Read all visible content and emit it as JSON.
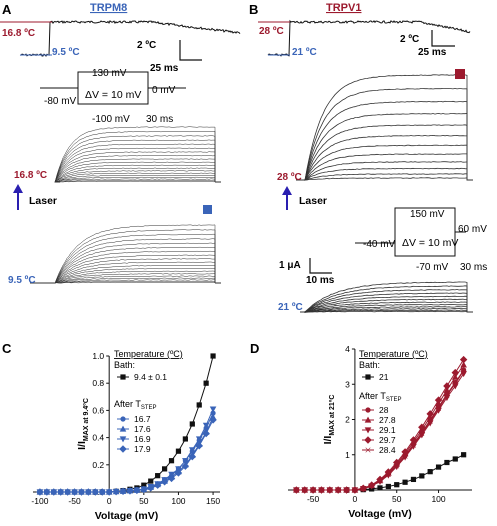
{
  "colors": {
    "blue": "#3a64b8",
    "red": "#9c1a2e",
    "black": "#111111",
    "arrow": "#2a1fb0"
  },
  "panelA": {
    "letter": "A",
    "title": "TRPM8",
    "temp_hi": "16.8 ºC",
    "temp_lo": "9.5 ºC",
    "scale_temp": "2 ºC",
    "scale_time": "25 ms",
    "protocol": {
      "top": "130 mV",
      "left": "-80 mV",
      "right": "0 mV",
      "bottom": "-100 mV",
      "time": "30 ms",
      "delta": "ΔV = 10 mV"
    },
    "trace1_temp": "16.8 ºC",
    "laser": "Laser",
    "trace2_temp": "9.5 ºC"
  },
  "panelB": {
    "letter": "B",
    "title": "TRPV1",
    "temp_hi": "28 ºC",
    "temp_lo": "21 ºC",
    "scale_temp": "2 ºC",
    "scale_time": "25 ms",
    "trace1_temp": "28 ºC",
    "laser": "Laser",
    "protocol": {
      "top": "150 mV",
      "left": "-40 mV",
      "right": "60 mV",
      "bottom": "-70 mV",
      "time": "30 ms",
      "delta": "ΔV = 10 mV"
    },
    "scale_current": "1 μA",
    "scale_time2": "10 ms",
    "trace2_temp": "21 ºC"
  },
  "panelC": {
    "letter": "C",
    "legend": {
      "heading": "Temperature (ºC)",
      "bath_label": "Bath:",
      "bath_value": "9.4 ± 0.1",
      "after_label": "After T",
      "after_sub": "STEP"
    }
  },
  "panelD": {
    "letter": "D",
    "legend": {
      "heading": "Temperature (ºC)",
      "bath_label": "Bath:",
      "bath_value": "21",
      "after_label": "After T",
      "after_sub": "STEP"
    }
  },
  "chart_data": [
    {
      "type": "line",
      "panel": "C",
      "xlabel": "Voltage (mV)",
      "ylabel_main": "I/I",
      "ylabel_sub": "MAX at 9.4ºC",
      "xlim": [
        -110,
        160
      ],
      "ylim": [
        0,
        1.0
      ],
      "xticks": [
        -100,
        -50,
        0,
        50,
        100,
        150
      ],
      "yticks": [
        0.0,
        0.2,
        0.4,
        0.6,
        0.8,
        1.0
      ],
      "x": [
        -100,
        -90,
        -80,
        -70,
        -60,
        -50,
        -40,
        -30,
        -20,
        -10,
        0,
        10,
        20,
        30,
        40,
        50,
        60,
        70,
        80,
        90,
        100,
        110,
        120,
        130,
        140,
        150
      ],
      "series": [
        {
          "name": "9.4 ± 0.1",
          "marker": "square",
          "color": "#111111",
          "values": [
            0,
            0,
            0,
            0,
            0,
            0,
            0,
            0,
            0,
            0,
            0,
            0.005,
            0.01,
            0.02,
            0.03,
            0.05,
            0.08,
            0.12,
            0.17,
            0.23,
            0.3,
            0.39,
            0.5,
            0.64,
            0.8,
            1.0
          ]
        },
        {
          "name": "16.7",
          "marker": "circle",
          "color": "#3a64b8",
          "values": [
            0,
            0,
            0,
            0,
            0,
            0,
            0,
            0,
            0,
            0,
            0,
            0.003,
            0.006,
            0.01,
            0.015,
            0.02,
            0.04,
            0.06,
            0.09,
            0.12,
            0.17,
            0.23,
            0.3,
            0.38,
            0.47,
            0.58
          ]
        },
        {
          "name": "17.6",
          "marker": "triangle-up",
          "color": "#3a64b8",
          "values": [
            0,
            0,
            0,
            0,
            0,
            0,
            0,
            0,
            0,
            0,
            0,
            0.003,
            0.005,
            0.009,
            0.013,
            0.02,
            0.035,
            0.055,
            0.08,
            0.11,
            0.15,
            0.2,
            0.27,
            0.35,
            0.44,
            0.55
          ]
        },
        {
          "name": "16.9",
          "marker": "triangle-down",
          "color": "#3a64b8",
          "values": [
            0,
            0,
            0,
            0,
            0,
            0,
            0,
            0,
            0,
            0,
            0,
            0.003,
            0.006,
            0.01,
            0.015,
            0.022,
            0.04,
            0.06,
            0.09,
            0.13,
            0.17,
            0.23,
            0.31,
            0.39,
            0.49,
            0.61
          ]
        },
        {
          "name": "17.9",
          "marker": "diamond",
          "color": "#3a64b8",
          "values": [
            0,
            0,
            0,
            0,
            0,
            0,
            0,
            0,
            0,
            0,
            0,
            0.003,
            0.005,
            0.008,
            0.012,
            0.018,
            0.03,
            0.05,
            0.075,
            0.1,
            0.14,
            0.19,
            0.26,
            0.34,
            0.43,
            0.53
          ]
        }
      ]
    },
    {
      "type": "line",
      "panel": "D",
      "xlabel": "Voltage (mV)",
      "ylabel_main": "I/I",
      "ylabel_sub": "MAX at 21ºC",
      "xlim": [
        -80,
        140
      ],
      "ylim": [
        0,
        4
      ],
      "xticks": [
        -50,
        0,
        50,
        100
      ],
      "yticks": [
        0,
        1,
        2,
        3,
        4
      ],
      "x": [
        -70,
        -60,
        -50,
        -40,
        -30,
        -20,
        -10,
        0,
        10,
        20,
        30,
        40,
        50,
        60,
        70,
        80,
        90,
        100,
        110,
        120,
        130
      ],
      "series": [
        {
          "name": "21",
          "marker": "square",
          "color": "#111111",
          "values": [
            0,
            0,
            0,
            0,
            0,
            0,
            0,
            0,
            0.01,
            0.03,
            0.06,
            0.1,
            0.15,
            0.22,
            0.3,
            0.4,
            0.52,
            0.65,
            0.78,
            0.88,
            1.0
          ]
        },
        {
          "name": "28",
          "marker": "circle",
          "color": "#9c1a2e",
          "values": [
            0,
            0,
            0,
            0,
            0,
            0,
            0,
            0,
            0.04,
            0.12,
            0.26,
            0.45,
            0.7,
            0.98,
            1.3,
            1.63,
            1.98,
            2.35,
            2.72,
            3.05,
            3.4
          ]
        },
        {
          "name": "27.8",
          "marker": "triangle-up",
          "color": "#9c1a2e",
          "values": [
            0,
            0,
            0,
            0,
            0,
            0,
            0,
            0,
            0.04,
            0.13,
            0.28,
            0.48,
            0.74,
            1.03,
            1.36,
            1.7,
            2.07,
            2.45,
            2.83,
            3.2,
            3.55
          ]
        },
        {
          "name": "29.1",
          "marker": "triangle-down",
          "color": "#9c1a2e",
          "values": [
            0,
            0,
            0,
            0,
            0,
            0,
            0,
            0,
            0.04,
            0.11,
            0.24,
            0.42,
            0.66,
            0.93,
            1.24,
            1.56,
            1.9,
            2.26,
            2.62,
            2.95,
            3.3
          ]
        },
        {
          "name": "29.7",
          "marker": "diamond",
          "color": "#9c1a2e",
          "values": [
            0,
            0,
            0,
            0,
            0,
            0,
            0,
            0,
            0.05,
            0.14,
            0.3,
            0.51,
            0.78,
            1.08,
            1.42,
            1.78,
            2.16,
            2.55,
            2.95,
            3.33,
            3.7
          ]
        },
        {
          "name": "28.4",
          "marker": "cross",
          "color": "#9c1a2e",
          "values": [
            0,
            0,
            0,
            0,
            0,
            0,
            0,
            0,
            0.04,
            0.12,
            0.25,
            0.44,
            0.68,
            0.96,
            1.27,
            1.6,
            1.95,
            2.31,
            2.68,
            3.02,
            3.38
          ]
        }
      ]
    }
  ]
}
